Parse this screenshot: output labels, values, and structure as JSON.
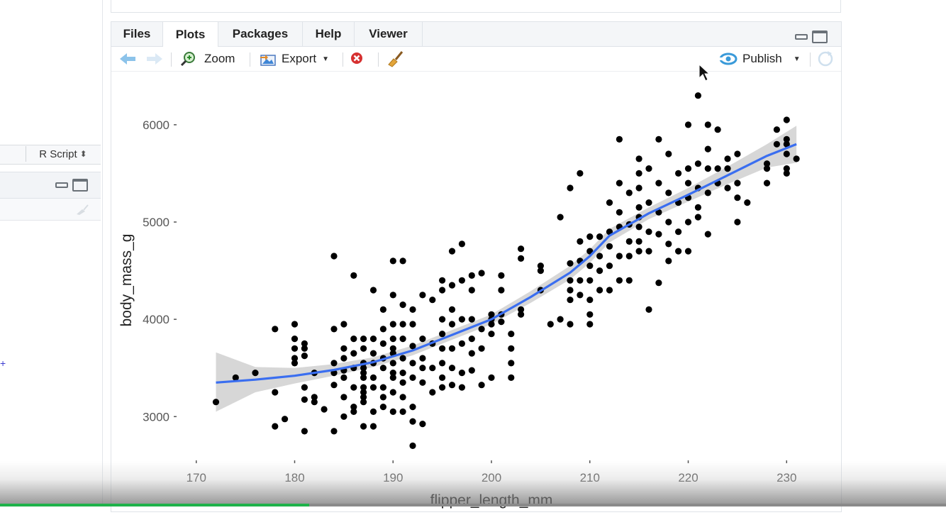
{
  "left_panel": {
    "script_type": "R Script",
    "script_type_caret": "⬍"
  },
  "tabs": [
    {
      "label": "Files",
      "active": false
    },
    {
      "label": "Plots",
      "active": true
    },
    {
      "label": "Packages",
      "active": false
    },
    {
      "label": "Help",
      "active": false
    },
    {
      "label": "Viewer",
      "active": false
    }
  ],
  "toolbar": {
    "zoom_label": "Zoom",
    "export_label": "Export",
    "publish_label": "Publish"
  },
  "colors": {
    "smooth_line": "#3a6ef0",
    "ribbon": "#c9c9c9",
    "points": "#000000",
    "publish_icon": "#3a9ad9",
    "progress": "#1fb24a"
  },
  "chart_data": {
    "type": "scatter",
    "xlabel": "flipper_length_mm",
    "ylabel": "body_mass_g",
    "xlim": [
      168,
      232
    ],
    "ylim": [
      2550,
      6400
    ],
    "x_ticks": [
      170,
      180,
      190,
      200,
      210,
      220,
      230
    ],
    "y_ticks": [
      3000,
      4000,
      5000,
      6000
    ],
    "x_tick_labels": [
      "170",
      "180",
      "190",
      "200",
      "210",
      "220",
      "230"
    ],
    "y_tick_labels": [
      "3000",
      "4000",
      "5000",
      "6000"
    ],
    "grid": false,
    "smooth": {
      "method": "loess",
      "x": [
        172,
        176,
        180,
        184,
        188,
        192,
        196,
        200,
        204,
        208,
        210,
        212,
        216,
        220,
        224,
        228,
        231
      ],
      "y": [
        3350,
        3380,
        3420,
        3480,
        3560,
        3680,
        3840,
        4000,
        4230,
        4480,
        4650,
        4860,
        5090,
        5280,
        5480,
        5680,
        5800
      ],
      "lower": [
        3050,
        3250,
        3340,
        3420,
        3510,
        3630,
        3790,
        3950,
        4170,
        4410,
        4580,
        4790,
        5030,
        5210,
        5390,
        5560,
        5610
      ],
      "upper": [
        3660,
        3510,
        3500,
        3540,
        3610,
        3730,
        3890,
        4050,
        4290,
        4550,
        4720,
        4930,
        5150,
        5350,
        5570,
        5800,
        5990
      ]
    },
    "points": [
      [
        172,
        3150
      ],
      [
        174,
        3400
      ],
      [
        176,
        3450
      ],
      [
        178,
        3900
      ],
      [
        178,
        3250
      ],
      [
        178,
        2900
      ],
      [
        179,
        2975
      ],
      [
        180,
        3950
      ],
      [
        180,
        3800
      ],
      [
        180,
        3700
      ],
      [
        180,
        3600
      ],
      [
        180,
        3550
      ],
      [
        181,
        3750
      ],
      [
        181,
        3700
      ],
      [
        181,
        3625
      ],
      [
        181,
        3300
      ],
      [
        181,
        3175
      ],
      [
        181,
        2850
      ],
      [
        182,
        3450
      ],
      [
        182,
        3200
      ],
      [
        182,
        3150
      ],
      [
        183,
        3075
      ],
      [
        184,
        4650
      ],
      [
        184,
        3900
      ],
      [
        184,
        3550
      ],
      [
        184,
        3450
      ],
      [
        184,
        3325
      ],
      [
        184,
        2850
      ],
      [
        185,
        3950
      ],
      [
        185,
        3700
      ],
      [
        185,
        3600
      ],
      [
        185,
        3475
      ],
      [
        185,
        3400
      ],
      [
        185,
        3200
      ],
      [
        185,
        3000
      ],
      [
        186,
        4450
      ],
      [
        186,
        3800
      ],
      [
        186,
        3650
      ],
      [
        186,
        3500
      ],
      [
        186,
        3300
      ],
      [
        186,
        3100
      ],
      [
        186,
        3050
      ],
      [
        187,
        3800
      ],
      [
        187,
        3700
      ],
      [
        187,
        3550
      ],
      [
        187,
        3500
      ],
      [
        187,
        3450
      ],
      [
        187,
        3400
      ],
      [
        187,
        3300
      ],
      [
        187,
        3250
      ],
      [
        187,
        3200
      ],
      [
        187,
        3150
      ],
      [
        187,
        2900
      ],
      [
        188,
        4300
      ],
      [
        188,
        3800
      ],
      [
        188,
        3650
      ],
      [
        188,
        3550
      ],
      [
        188,
        3400
      ],
      [
        188,
        3300
      ],
      [
        188,
        3050
      ],
      [
        188,
        2900
      ],
      [
        189,
        4100
      ],
      [
        189,
        3900
      ],
      [
        189,
        3750
      ],
      [
        189,
        3600
      ],
      [
        189,
        3500
      ],
      [
        189,
        3300
      ],
      [
        189,
        3200
      ],
      [
        189,
        3100
      ],
      [
        190,
        4600
      ],
      [
        190,
        4250
      ],
      [
        190,
        3950
      ],
      [
        190,
        3800
      ],
      [
        190,
        3700
      ],
      [
        190,
        3650
      ],
      [
        190,
        3550
      ],
      [
        190,
        3450
      ],
      [
        190,
        3400
      ],
      [
        190,
        3250
      ],
      [
        190,
        3050
      ],
      [
        191,
        4600
      ],
      [
        191,
        4150
      ],
      [
        191,
        3950
      ],
      [
        191,
        3800
      ],
      [
        191,
        3600
      ],
      [
        191,
        3450
      ],
      [
        191,
        3350
      ],
      [
        191,
        3200
      ],
      [
        191,
        3050
      ],
      [
        192,
        4100
      ],
      [
        192,
        3950
      ],
      [
        192,
        3725
      ],
      [
        192,
        3550
      ],
      [
        192,
        3400
      ],
      [
        192,
        3100
      ],
      [
        192,
        2950
      ],
      [
        192,
        2700
      ],
      [
        193,
        4250
      ],
      [
        193,
        3800
      ],
      [
        193,
        3600
      ],
      [
        193,
        3500
      ],
      [
        193,
        3350
      ],
      [
        193,
        2925
      ],
      [
        194,
        4200
      ],
      [
        194,
        3750
      ],
      [
        194,
        3500
      ],
      [
        194,
        3250
      ],
      [
        195,
        4400
      ],
      [
        195,
        4300
      ],
      [
        195,
        4000
      ],
      [
        195,
        3850
      ],
      [
        195,
        3700
      ],
      [
        195,
        3550
      ],
      [
        195,
        3400
      ],
      [
        195,
        3300
      ],
      [
        196,
        4700
      ],
      [
        196,
        4350
      ],
      [
        196,
        4100
      ],
      [
        196,
        3950
      ],
      [
        196,
        3700
      ],
      [
        196,
        3500
      ],
      [
        196,
        3325
      ],
      [
        197,
        4775
      ],
      [
        197,
        4400
      ],
      [
        197,
        4000
      ],
      [
        197,
        3750
      ],
      [
        197,
        3450
      ],
      [
        197,
        3300
      ],
      [
        198,
        4450
      ],
      [
        198,
        4300
      ],
      [
        198,
        4000
      ],
      [
        198,
        3800
      ],
      [
        198,
        3650
      ],
      [
        198,
        3475
      ],
      [
        199,
        4475
      ],
      [
        199,
        3900
      ],
      [
        199,
        3700
      ],
      [
        199,
        3325
      ],
      [
        200,
        4050
      ],
      [
        200,
        4000
      ],
      [
        200,
        3950
      ],
      [
        200,
        3850
      ],
      [
        200,
        3400
      ],
      [
        201,
        4450
      ],
      [
        201,
        4300
      ],
      [
        201,
        4050
      ],
      [
        201,
        3975
      ],
      [
        202,
        3850
      ],
      [
        202,
        3700
      ],
      [
        202,
        3550
      ],
      [
        202,
        3400
      ],
      [
        203,
        4725
      ],
      [
        203,
        4625
      ],
      [
        203,
        4100
      ],
      [
        203,
        4050
      ],
      [
        205,
        4550
      ],
      [
        205,
        4500
      ],
      [
        205,
        4300
      ],
      [
        206,
        3950
      ],
      [
        207,
        5050
      ],
      [
        207,
        4000
      ],
      [
        208,
        5350
      ],
      [
        208,
        4575
      ],
      [
        208,
        4400
      ],
      [
        208,
        4300
      ],
      [
        208,
        4200
      ],
      [
        208,
        3950
      ],
      [
        209,
        5500
      ],
      [
        209,
        4800
      ],
      [
        209,
        4600
      ],
      [
        209,
        4400
      ],
      [
        209,
        4250
      ],
      [
        210,
        4850
      ],
      [
        210,
        4700
      ],
      [
        210,
        4550
      ],
      [
        210,
        4400
      ],
      [
        210,
        4200
      ],
      [
        210,
        4050
      ],
      [
        210,
        3950
      ],
      [
        211,
        4850
      ],
      [
        211,
        4650
      ],
      [
        211,
        4500
      ],
      [
        211,
        4300
      ],
      [
        212,
        5200
      ],
      [
        212,
        4900
      ],
      [
        212,
        4750
      ],
      [
        212,
        4550
      ],
      [
        212,
        4300
      ],
      [
        213,
        5850
      ],
      [
        213,
        5400
      ],
      [
        213,
        5100
      ],
      [
        213,
        4950
      ],
      [
        213,
        4650
      ],
      [
        213,
        4400
      ],
      [
        214,
        5300
      ],
      [
        214,
        4975
      ],
      [
        214,
        4800
      ],
      [
        214,
        4650
      ],
      [
        214,
        4400
      ],
      [
        215,
        5650
      ],
      [
        215,
        5500
      ],
      [
        215,
        5350
      ],
      [
        215,
        5150
      ],
      [
        215,
        5050
      ],
      [
        215,
        4950
      ],
      [
        215,
        4800
      ],
      [
        215,
        4700
      ],
      [
        216,
        5550
      ],
      [
        216,
        5200
      ],
      [
        216,
        4900
      ],
      [
        216,
        4700
      ],
      [
        216,
        4100
      ],
      [
        217,
        5850
      ],
      [
        217,
        5400
      ],
      [
        217,
        5100
      ],
      [
        217,
        4875
      ],
      [
        217,
        4375
      ],
      [
        218,
        5700
      ],
      [
        218,
        5300
      ],
      [
        218,
        5000
      ],
      [
        218,
        4775
      ],
      [
        218,
        4600
      ],
      [
        219,
        5500
      ],
      [
        219,
        5200
      ],
      [
        219,
        4900
      ],
      [
        219,
        4700
      ],
      [
        220,
        6000
      ],
      [
        220,
        5550
      ],
      [
        220,
        5400
      ],
      [
        220,
        5250
      ],
      [
        220,
        5000
      ],
      [
        220,
        4700
      ],
      [
        221,
        6300
      ],
      [
        221,
        5600
      ],
      [
        221,
        5350
      ],
      [
        221,
        5150
      ],
      [
        221,
        5050
      ],
      [
        222,
        6000
      ],
      [
        222,
        5750
      ],
      [
        222,
        5550
      ],
      [
        222,
        5300
      ],
      [
        222,
        4875
      ],
      [
        223,
        5950
      ],
      [
        223,
        5550
      ],
      [
        223,
        5400
      ],
      [
        224,
        5650
      ],
      [
        224,
        5550
      ],
      [
        224,
        5350
      ],
      [
        225,
        5700
      ],
      [
        225,
        5400
      ],
      [
        225,
        5250
      ],
      [
        225,
        5000
      ],
      [
        226,
        5200
      ],
      [
        228,
        5600
      ],
      [
        228,
        5550
      ],
      [
        228,
        5400
      ],
      [
        229,
        5950
      ],
      [
        229,
        5800
      ],
      [
        230,
        6050
      ],
      [
        230,
        5850
      ],
      [
        230,
        5800
      ],
      [
        230,
        5700
      ],
      [
        230,
        5550
      ],
      [
        230,
        5500
      ],
      [
        231,
        5650
      ]
    ]
  }
}
